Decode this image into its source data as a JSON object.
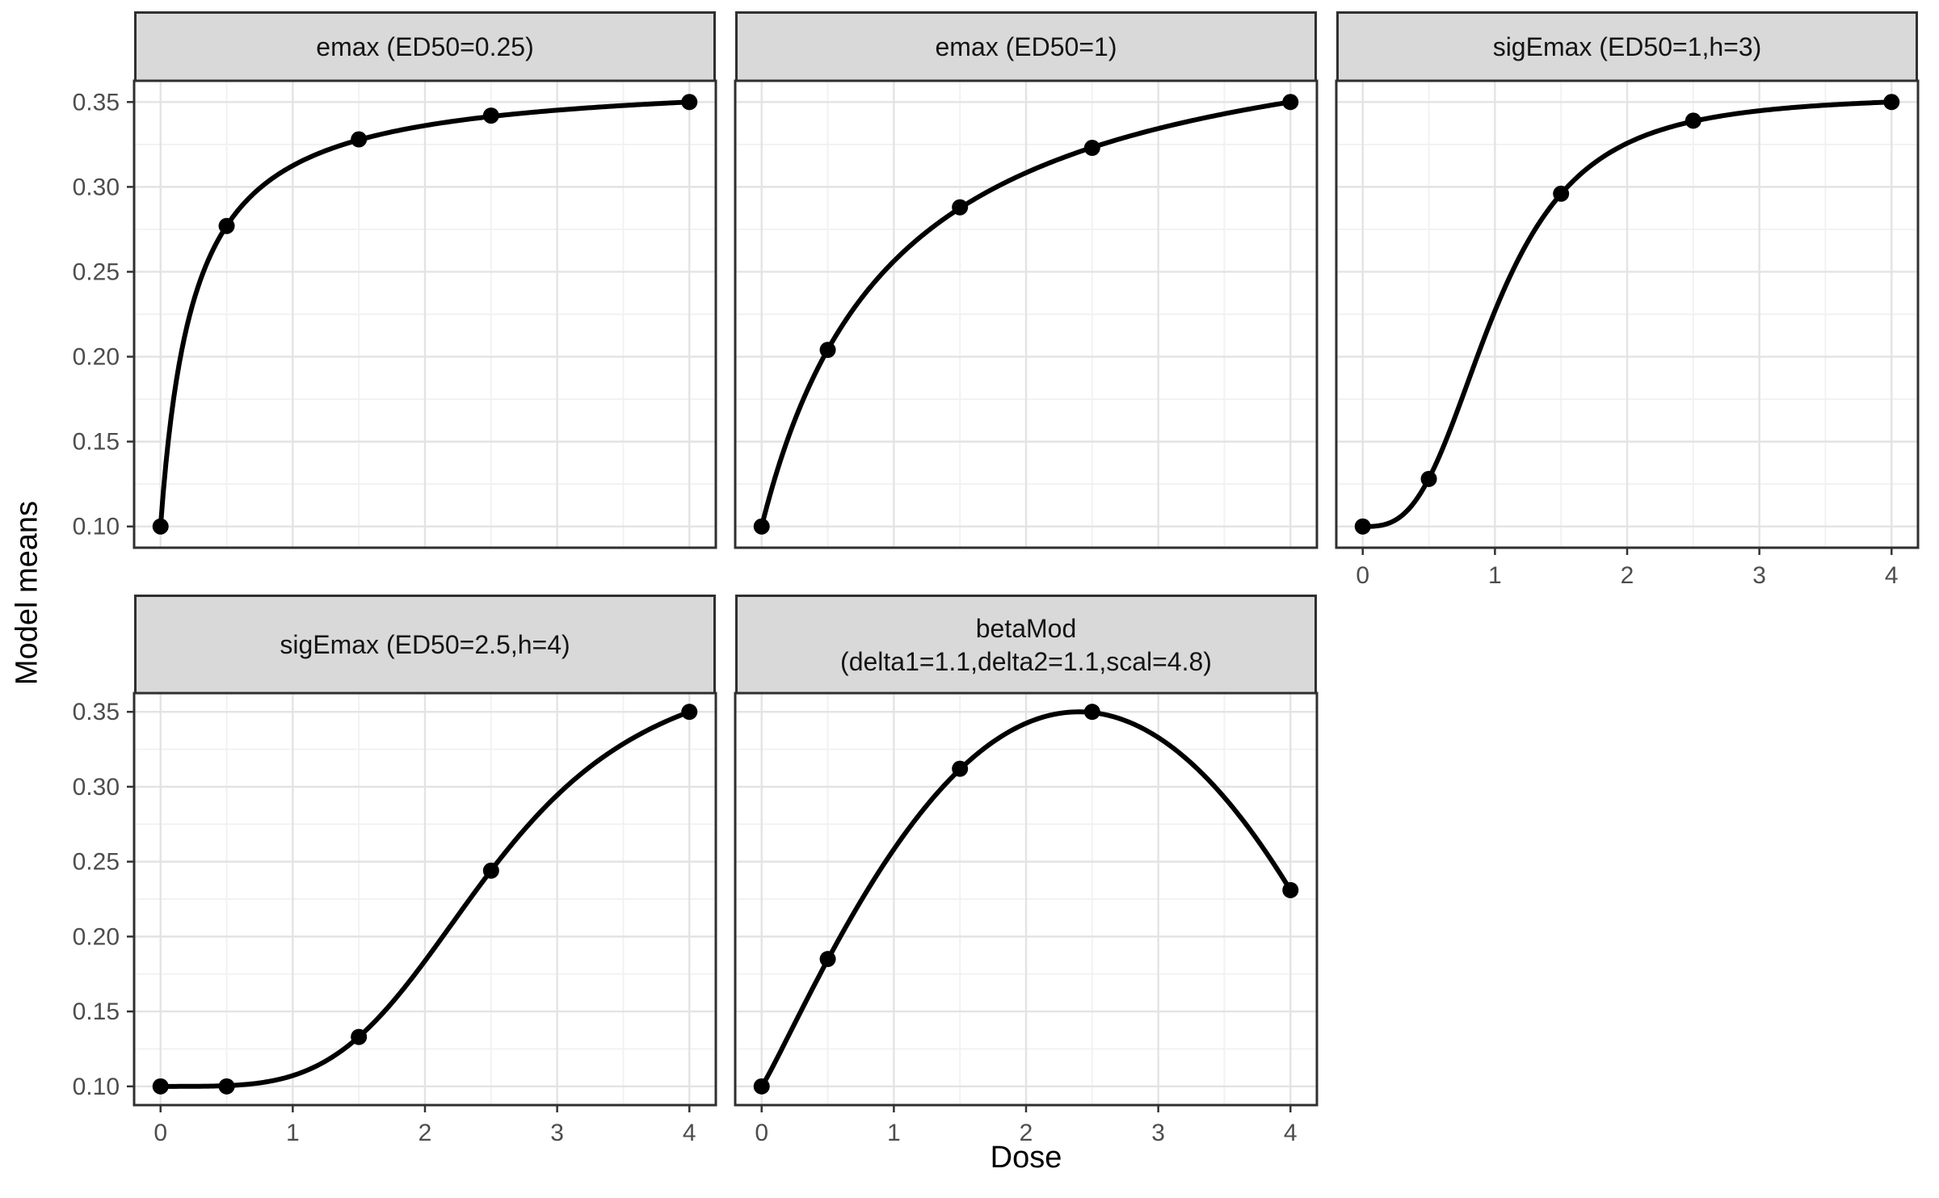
{
  "chart_data": {
    "type": "line",
    "description": "Faceted dose-response candidate model means (DoseFinding Mods plot), 5 panels",
    "xlabel": "Dose",
    "ylabel": "Model means",
    "x_ticks": [
      0,
      1,
      2,
      3,
      4
    ],
    "x_minor_ticks": [
      0.5,
      1.5,
      2.5,
      3.5
    ],
    "y_ticks": [
      0.1,
      0.15,
      0.2,
      0.25,
      0.3,
      0.35
    ],
    "y_tick_labels": [
      "0.10",
      "0.15",
      "0.20",
      "0.25",
      "0.30",
      "0.35"
    ],
    "y_minor_ticks": [
      0.125,
      0.175,
      0.225,
      0.275,
      0.325
    ],
    "xlim": [
      -0.2,
      4.2
    ],
    "ylim": [
      0.0875,
      0.3625
    ],
    "dose_range": [
      0,
      4
    ],
    "placEff": 0.1,
    "maxEff": 0.25,
    "grid": true,
    "legend": "none",
    "line_color": "#000000",
    "point_color": "#000000",
    "strip_fill": "#d9d9d9",
    "doses": [
      0,
      0.5,
      1.5,
      2.5,
      4
    ],
    "facets": [
      {
        "label": "emax (ED50=0.25)",
        "model": "emax",
        "params": {
          "ed50": 0.25
        },
        "x": [
          0,
          0.5,
          1.5,
          2.5,
          4
        ],
        "y": [
          0.1,
          0.277,
          0.328,
          0.342,
          0.35
        ]
      },
      {
        "label": "emax (ED50=1)",
        "model": "emax",
        "params": {
          "ed50": 1
        },
        "x": [
          0,
          0.5,
          1.5,
          2.5,
          4
        ],
        "y": [
          0.1,
          0.204,
          0.288,
          0.323,
          0.35
        ]
      },
      {
        "label": "sigEmax (ED50=1,h=3)",
        "model": "sigEmax",
        "params": {
          "ed50": 1,
          "h": 3
        },
        "x": [
          0,
          0.5,
          1.5,
          2.5,
          4
        ],
        "y": [
          0.1,
          0.128,
          0.296,
          0.339,
          0.35
        ]
      },
      {
        "label": "sigEmax (ED50=2.5,h=4)",
        "model": "sigEmax",
        "params": {
          "ed50": 2.5,
          "h": 4
        },
        "x": [
          0,
          0.5,
          1.5,
          2.5,
          4
        ],
        "y": [
          0.1,
          0.1,
          0.133,
          0.244,
          0.35
        ]
      },
      {
        "label": "betaMod\n(delta1=1.1,delta2=1.1,scal=4.8)",
        "model": "betaMod",
        "params": {
          "delta1": 1.1,
          "delta2": 1.1,
          "scal": 4.8
        },
        "x": [
          0,
          0.5,
          1.5,
          2.5,
          4
        ],
        "y": [
          0.1,
          0.185,
          0.312,
          0.35,
          0.231
        ]
      }
    ]
  }
}
